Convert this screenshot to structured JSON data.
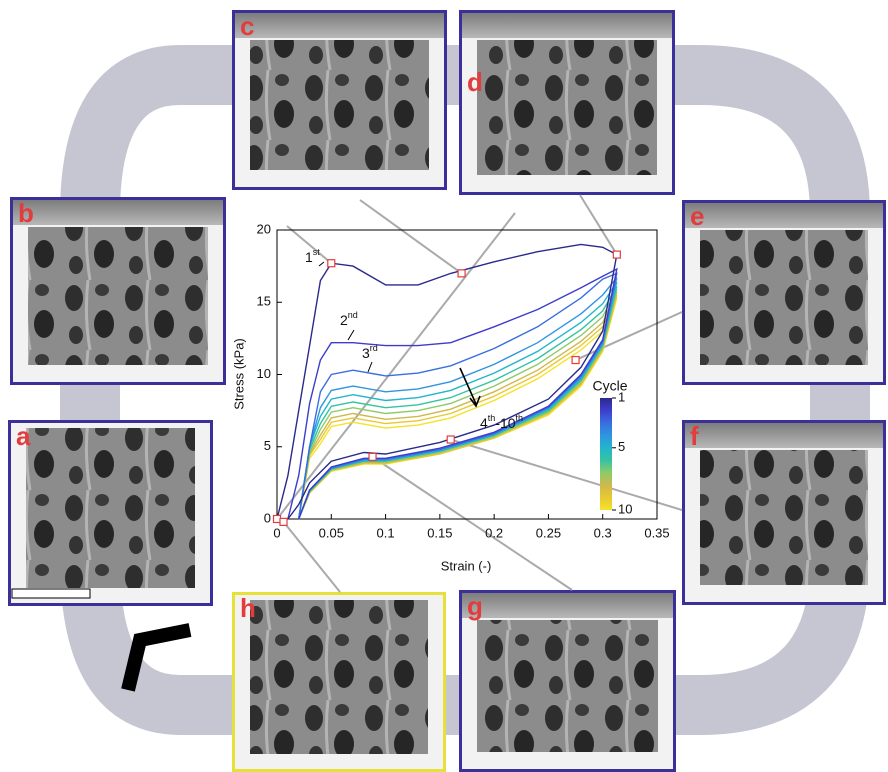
{
  "chart_data": {
    "type": "line",
    "xlabel": "Strain (-)",
    "ylabel": "Stress (kPa)",
    "xlim": [
      0,
      0.35
    ],
    "xticks": [
      0,
      0.05,
      0.1,
      0.15,
      0.2,
      0.25,
      0.3,
      0.35
    ],
    "ylim": [
      0,
      20
    ],
    "yticks": [
      0,
      5,
      10,
      15,
      20
    ],
    "x": [
      0,
      0.01,
      0.02,
      0.03,
      0.04,
      0.05,
      0.07,
      0.1,
      0.13,
      0.16,
      0.2,
      0.24,
      0.28,
      0.3,
      0.313,
      0.3,
      0.28,
      0.25,
      0.2,
      0.15,
      0.1,
      0.08,
      0.05,
      0.03,
      0.02,
      0.01
    ],
    "series": [
      {
        "color": "#2a2a8c",
        "values": [
          0,
          3,
          7.5,
          12,
          16.5,
          17.7,
          17.5,
          16.2,
          16.2,
          17,
          17.8,
          18.5,
          19,
          18.8,
          18.3,
          13,
          10.5,
          8.3,
          6.5,
          5.3,
          4.5,
          4.6,
          4,
          2.5,
          1,
          0
        ]
      },
      {
        "color": "#3d3dcc",
        "values": [
          null,
          0,
          3,
          8,
          11,
          12.2,
          12.2,
          12,
          12,
          12.2,
          13.3,
          14.5,
          16,
          16.8,
          17.3,
          12.4,
          10,
          7.8,
          6,
          4.9,
          4.2,
          4.2,
          3.6,
          2,
          0,
          null
        ]
      },
      {
        "color": "#3a6ee0",
        "values": [
          null,
          null,
          0,
          5,
          8.8,
          10,
          10.3,
          9.9,
          10.1,
          10.6,
          11.8,
          13.3,
          15.3,
          16.6,
          17,
          12.3,
          9.9,
          7.7,
          5.9,
          4.8,
          4.15,
          4.15,
          3.55,
          2,
          0,
          null
        ]
      },
      {
        "color": "#2f95e0",
        "values": [
          null,
          null,
          0,
          5,
          7.7,
          8.9,
          9.2,
          8.8,
          9,
          9.5,
          10.7,
          12.2,
          14.2,
          15.5,
          16.7,
          12.2,
          9.8,
          7.7,
          5.9,
          4.8,
          4.1,
          4.1,
          3.5,
          2,
          0,
          null
        ]
      },
      {
        "color": "#22b5cc",
        "values": [
          null,
          null,
          0,
          5,
          7.1,
          8.3,
          8.6,
          8.2,
          8.4,
          8.9,
          10.1,
          11.6,
          13.6,
          14.9,
          16.4,
          12.1,
          9.7,
          7.6,
          5.8,
          4.7,
          4.05,
          4.05,
          3.5,
          2,
          0,
          null
        ]
      },
      {
        "color": "#35c3a2",
        "values": [
          null,
          null,
          0,
          4.8,
          6.6,
          7.8,
          8.1,
          7.7,
          7.9,
          8.4,
          9.6,
          11.1,
          13.1,
          14.4,
          16.1,
          12,
          9.6,
          7.5,
          5.8,
          4.7,
          4,
          4,
          3.45,
          1.9,
          0,
          null
        ]
      },
      {
        "color": "#8ccb6a",
        "values": [
          null,
          null,
          0,
          4.6,
          6.2,
          7.4,
          7.7,
          7.3,
          7.5,
          8,
          9.2,
          10.7,
          12.7,
          14,
          15.9,
          11.9,
          9.5,
          7.4,
          5.7,
          4.6,
          3.95,
          3.95,
          3.4,
          1.9,
          0,
          null
        ]
      },
      {
        "color": "#cfb84c",
        "values": [
          null,
          null,
          0,
          4.5,
          5.8,
          7,
          7.3,
          6.9,
          7.1,
          7.6,
          8.8,
          10.3,
          12.3,
          13.6,
          15.7,
          11.8,
          9.4,
          7.4,
          5.7,
          4.6,
          3.9,
          3.9,
          3.4,
          1.9,
          0,
          null
        ]
      },
      {
        "color": "#e8c832",
        "values": [
          null,
          null,
          0,
          4.4,
          5.5,
          6.7,
          7,
          6.6,
          6.8,
          7.3,
          8.5,
          10,
          12,
          13.3,
          15.5,
          11.7,
          9.3,
          7.3,
          5.6,
          4.5,
          3.85,
          3.85,
          3.35,
          1.8,
          0,
          null
        ]
      },
      {
        "color": "#f5e22a",
        "values": [
          null,
          null,
          0,
          4.2,
          5.2,
          6.4,
          6.7,
          6.3,
          6.5,
          7,
          8.2,
          9.7,
          11.7,
          13,
          15.3,
          11.6,
          9.2,
          7.2,
          5.6,
          4.5,
          3.8,
          3.8,
          3.3,
          1.8,
          0,
          null
        ]
      }
    ],
    "annotations": [
      [
        "1",
        "st"
      ],
      [
        "2",
        "nd"
      ],
      [
        "3",
        "rd"
      ],
      [
        "4",
        "th",
        "-10",
        "th"
      ]
    ],
    "colorbar": {
      "title": "Cycle",
      "range": [
        1,
        10
      ],
      "ticks": [
        1,
        5,
        10
      ]
    },
    "markers": {
      "x": [
        0,
        0.05,
        0.17,
        0.313,
        0.275,
        0.16,
        0.088,
        0.006
      ],
      "y": [
        0,
        17.7,
        17,
        18.3,
        11,
        5.5,
        4.3,
        -0.2
      ],
      "color": "#e23c3c"
    }
  },
  "panels": [
    "a",
    "b",
    "c",
    "d",
    "e",
    "f",
    "g",
    "h"
  ]
}
